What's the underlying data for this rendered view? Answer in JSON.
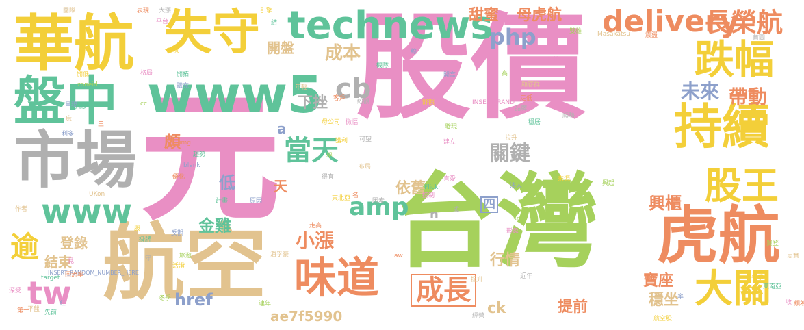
{
  "cloud": {
    "palette": {
      "pink": "#e98fc4",
      "green": "#a6d15c",
      "tan": "#e2c38f",
      "gray": "#b0b0b0",
      "teal": "#5fc39a",
      "orange": "#ee8c60",
      "yellow": "#f3cf39",
      "blue": "#8da0cb"
    },
    "words": {
      "w01": "元",
      "w02": "股價",
      "w03": "台灣",
      "w04": "航空",
      "w05": "市場",
      "w06": "華航",
      "w07": "虎航",
      "w08": "盤中",
      "w09": "www5",
      "w10": "technews",
      "w11": "失守",
      "w12": "delivery",
      "w13": "長榮航",
      "w14": "持續",
      "w15": "跌幅",
      "w16": "味道",
      "w17": "大關",
      "w18": "股王",
      "w19": "成長",
      "w20": "www",
      "w21": "amp",
      "w22": "tw",
      "w23": "逾",
      "w24": "php",
      "w25": "cb",
      "w26": "當天",
      "w27": "關鍵",
      "w28": "帶動",
      "w29": "未來",
      "w30": "成本",
      "w31": "開盤",
      "w32": "甜蜜",
      "w33": "母虎航",
      "w34": "下挫",
      "w35": "小漲",
      "w36": "興櫃",
      "w37": "寶座",
      "w38": "穩坐",
      "w39": "依舊",
      "w40": "金雞",
      "w41": "登錄",
      "w42": "結束",
      "w43": "行情",
      "w44": "提前",
      "w45": "ae7f5990",
      "w46": "href",
      "w47": "ck",
      "w48": "低",
      "w49": "頗",
      "w50": "天",
      "w51": "四",
      "w52": "a",
      "w53": "n"
    },
    "small_words": [
      "團隊",
      "表現",
      "大漲",
      "引擎",
      "平台",
      "結",
      "線",
      "雙雄",
      "Masakatsu",
      "震盪",
      "首圖",
      "拼玩",
      "相比",
      "機隊",
      "開高",
      "高",
      "顧客群",
      "走低",
      "品牌",
      "開低",
      "格局",
      "開拓",
      "購充",
      "zoneid",
      "年輕",
      "客戶",
      "紛觀",
      "舒觀",
      "INSERT_RAND",
      "航線",
      "呈現",
      "cc",
      "度",
      "三",
      "順勢",
      "母公司",
      "微幅",
      "穩居",
      "利多",
      "發現",
      "拉升",
      "img",
      "可望",
      "獲利",
      "建立",
      "趨勢",
      "blank",
      "一舉",
      "布局",
      "優化",
      "得宜",
      "來源",
      "喜愛",
      "Flickr",
      "法人",
      "興起",
      "UKon",
      "名",
      "因素",
      "東北亞",
      "控制",
      "計畫",
      "原因",
      "src",
      "作者",
      "走高",
      "成",
      "股",
      "形象",
      "掛牌",
      "反觀",
      "旅遊",
      "潘孚豪",
      "aw",
      "守",
      "活潑",
      "見",
      "target",
      "INSERT_RANDOM_NUMBER_HERE",
      "冬季",
      "提升",
      "回流率",
      "近年",
      "冬季",
      "深受",
      "先前",
      "紅",
      "連年",
      "平盤",
      "第一",
      "經營",
      "航空股",
      "收",
      "東南亞",
      "率",
      "買登",
      "忠實",
      "頗為",
      "二"
    ]
  }
}
